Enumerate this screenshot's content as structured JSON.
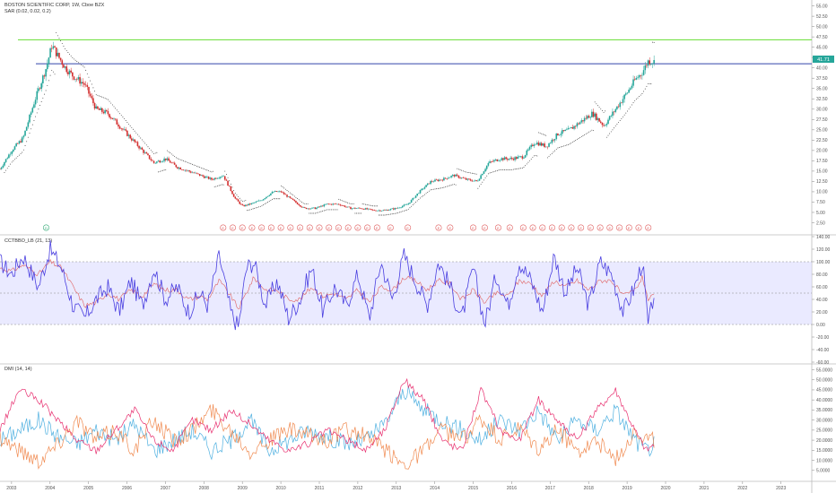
{
  "header": {
    "title": "BOSTON SCIENTIFIC CORP, 1W, Cboe BZX",
    "indicator": "SAR (0.02, 0.02, 0.2)"
  },
  "price_badge": "41.71",
  "pane2_header": "CCTBBO_LB (21, 13)",
  "pane3_header": "DMI (14, 14)",
  "event_markers": {
    "dividend_symbol": "D",
    "earnings_symbol": "E"
  },
  "colors": {
    "background": "#ffffff",
    "candle_up": "#26a69a",
    "candle_down": "#d32f2f",
    "sar_dots": "#222222",
    "green_level": "#66dd33",
    "blue_level": "#3344aa",
    "cctbbo_line": "#4a3fe0",
    "cctbbo_signal": "#e06060",
    "band_fill": "#dcdcff",
    "dmi_plus": "#4fb0e0",
    "dmi_minus": "#f08a50",
    "adx": "#e83070",
    "price_badge_bg": "#26a69a"
  },
  "chart_data": [
    {
      "type": "line",
      "pane": "price",
      "y_ticks": [
        "55.00",
        "52.50",
        "50.00",
        "47.50",
        "45.00",
        "42.50",
        "40.00",
        "37.50",
        "35.00",
        "32.50",
        "30.00",
        "27.50",
        "25.00",
        "22.50",
        "20.00",
        "17.50",
        "15.00",
        "12.50",
        "10.00",
        "7.50",
        "5.00",
        "2.50"
      ],
      "ylim": [
        0,
        56
      ],
      "x_ticks": [
        "2003",
        "2004",
        "2005",
        "2006",
        "2007",
        "2008",
        "2009",
        "2010",
        "2011",
        "2012",
        "2013",
        "2014",
        "2015",
        "2016",
        "2017",
        "2018",
        "2019",
        "2020",
        "2021",
        "2022",
        "2023"
      ],
      "xlim": [
        2002.7,
        2023.8
      ],
      "horizontal_levels": [
        {
          "value": 46.8,
          "color": "green"
        },
        {
          "value": 41.0,
          "color": "blue"
        }
      ],
      "series": [
        {
          "x": [
            2002.7,
            2003.0,
            2003.3,
            2003.6,
            2003.9,
            2004.05,
            2004.2,
            2004.4,
            2004.6,
            2004.9,
            2005.2,
            2005.5,
            2005.8,
            2006.1,
            2006.4,
            2006.7,
            2007.0,
            2007.3,
            2007.6,
            2007.9,
            2008.2,
            2008.5,
            2008.8,
            2009.0,
            2009.2,
            2009.5,
            2009.8,
            2010.0,
            2010.3,
            2010.6,
            2010.9,
            2011.2,
            2011.5,
            2011.8,
            2012.1,
            2012.4,
            2012.7,
            2013.0,
            2013.3,
            2013.6,
            2013.9,
            2014.2,
            2014.5,
            2014.8,
            2015.1,
            2015.4,
            2015.7,
            2016.0,
            2016.3,
            2016.6,
            2016.9,
            2017.2,
            2017.5,
            2017.8,
            2018.1,
            2018.4,
            2018.7,
            2019.0,
            2019.2,
            2019.4,
            2019.55,
            2019.7
          ],
          "values": [
            15.5,
            20,
            23,
            32,
            40,
            45.5,
            43,
            40,
            38,
            36,
            30,
            29,
            26,
            23,
            20,
            17,
            18,
            16,
            15,
            14,
            13,
            14,
            8.5,
            6.5,
            7,
            8,
            10,
            10,
            8,
            6,
            6,
            7,
            7,
            6,
            6,
            5.5,
            5.5,
            6,
            7,
            10,
            12.5,
            13,
            14,
            13,
            12.5,
            17,
            18,
            18,
            18.5,
            22,
            21,
            24,
            25,
            27,
            29,
            26,
            30,
            34,
            37,
            39,
            41.7,
            41.5
          ]
        }
      ]
    },
    {
      "type": "line",
      "pane": "oscillator",
      "title": "CCTBBO_LB (21, 13)",
      "y_ticks": [
        "140.00",
        "120.00",
        "100.00",
        "80.00",
        "60.00",
        "40.00",
        "20.00",
        "0.00",
        "-20.00",
        "-40.00",
        "-60.00"
      ],
      "ylim": [
        -60,
        140
      ],
      "band": [
        0,
        100
      ],
      "midline": 50,
      "x": [
        2002.7,
        2003.0,
        2003.3,
        2003.7,
        2004.0,
        2004.3,
        2004.6,
        2004.9,
        2005.2,
        2005.5,
        2005.8,
        2006.1,
        2006.4,
        2006.7,
        2007.0,
        2007.3,
        2007.6,
        2007.9,
        2008.1,
        2008.4,
        2008.7,
        2008.9,
        2009.1,
        2009.3,
        2009.6,
        2009.9,
        2010.2,
        2010.5,
        2010.8,
        2011.1,
        2011.4,
        2011.7,
        2012.0,
        2012.3,
        2012.6,
        2012.9,
        2013.2,
        2013.5,
        2013.8,
        2014.1,
        2014.4,
        2014.7,
        2015.0,
        2015.3,
        2015.6,
        2015.9,
        2016.2,
        2016.5,
        2016.8,
        2017.1,
        2017.4,
        2017.7,
        2018.0,
        2018.3,
        2018.6,
        2018.9,
        2019.2,
        2019.4,
        2019.55,
        2019.7
      ],
      "values": [
        100,
        80,
        110,
        60,
        120,
        90,
        30,
        10,
        40,
        60,
        20,
        70,
        30,
        90,
        40,
        60,
        20,
        50,
        30,
        110,
        20,
        -5,
        90,
        100,
        30,
        70,
        10,
        40,
        90,
        20,
        60,
        30,
        80,
        10,
        100,
        40,
        110,
        70,
        30,
        100,
        60,
        10,
        90,
        0,
        80,
        30,
        100,
        70,
        20,
        110,
        50,
        90,
        30,
        100,
        80,
        20,
        60,
        100,
        -5,
        50
      ],
      "signal": [
        90,
        85,
        95,
        80,
        100,
        90,
        60,
        30,
        35,
        50,
        40,
        55,
        45,
        65,
        55,
        55,
        40,
        45,
        40,
        70,
        45,
        25,
        50,
        75,
        55,
        55,
        40,
        40,
        60,
        45,
        50,
        40,
        55,
        35,
        60,
        55,
        75,
        70,
        55,
        70,
        65,
        40,
        55,
        35,
        50,
        45,
        70,
        65,
        45,
        70,
        60,
        70,
        55,
        70,
        70,
        45,
        55,
        75,
        40,
        45
      ]
    },
    {
      "type": "line",
      "pane": "dmi",
      "title": "DMI (14, 14)",
      "y_ticks": [
        "55.0000",
        "50.0000",
        "45.0000",
        "40.0000",
        "35.0000",
        "30.0000",
        "25.0000",
        "20.0000",
        "15.0000",
        "10.0000",
        "5.0000"
      ],
      "ylim": [
        0,
        57
      ],
      "x": [
        2002.7,
        2003.2,
        2003.7,
        2004.2,
        2004.7,
        2005.2,
        2005.7,
        2006.2,
        2006.7,
        2007.2,
        2007.7,
        2008.2,
        2008.7,
        2009.2,
        2009.7,
        2010.2,
        2010.7,
        2011.2,
        2011.7,
        2012.2,
        2012.7,
        2013.2,
        2013.7,
        2014.2,
        2014.7,
        2015.2,
        2015.7,
        2016.2,
        2016.7,
        2017.2,
        2017.7,
        2018.2,
        2018.7,
        2019.2,
        2019.5,
        2019.7
      ],
      "series": [
        {
          "name": "+DI",
          "values": [
            20,
            25,
            30,
            22,
            18,
            25,
            20,
            28,
            15,
            20,
            25,
            15,
            20,
            30,
            15,
            20,
            25,
            22,
            18,
            20,
            28,
            45,
            35,
            30,
            25,
            20,
            30,
            25,
            35,
            20,
            30,
            25,
            35,
            20,
            15,
            18
          ]
        },
        {
          "name": "-DI",
          "values": [
            22,
            15,
            10,
            18,
            30,
            20,
            25,
            15,
            30,
            20,
            25,
            35,
            25,
            15,
            20,
            25,
            22,
            20,
            25,
            22,
            15,
            8,
            15,
            25,
            20,
            30,
            20,
            25,
            15,
            25,
            15,
            20,
            10,
            25,
            20,
            20
          ]
        },
        {
          "name": "ADX",
          "values": [
            25,
            45,
            40,
            30,
            20,
            15,
            25,
            35,
            20,
            15,
            30,
            25,
            35,
            28,
            20,
            15,
            18,
            25,
            20,
            15,
            25,
            50,
            40,
            20,
            15,
            45,
            25,
            20,
            40,
            30,
            20,
            35,
            45,
            25,
            15,
            18
          ]
        }
      ]
    }
  ]
}
